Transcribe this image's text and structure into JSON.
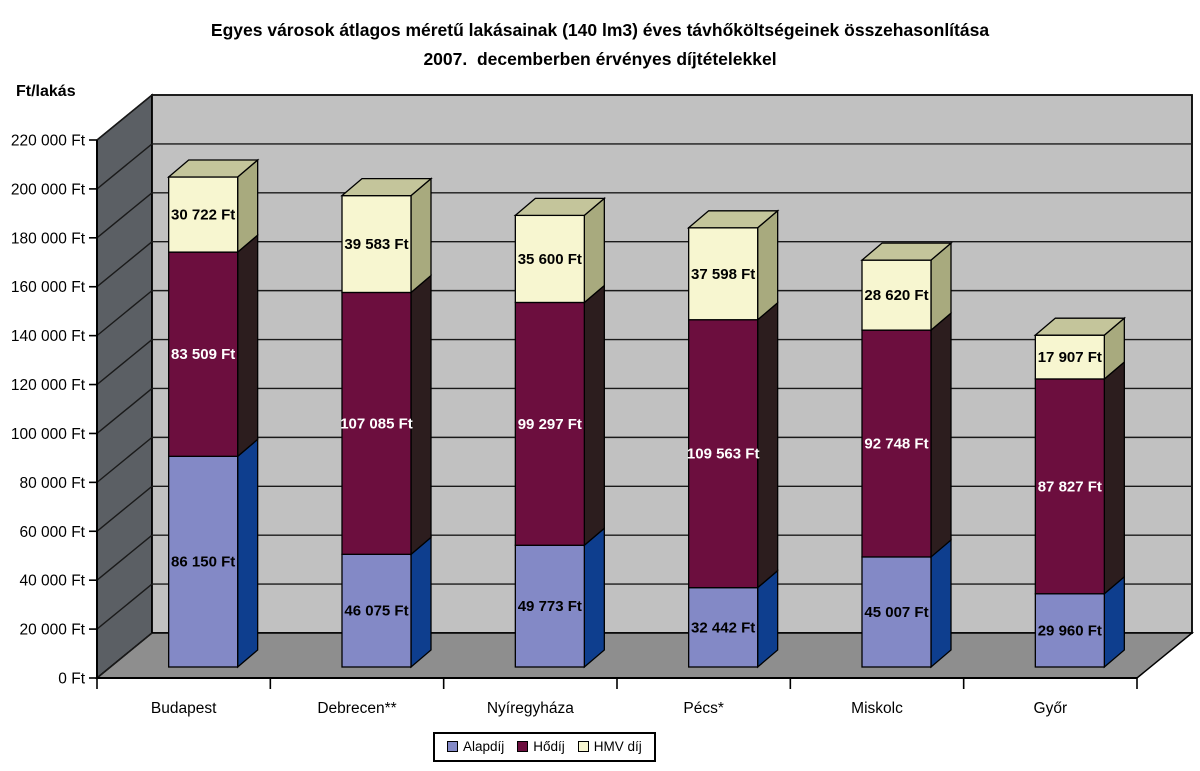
{
  "chart_data": {
    "type": "bar",
    "stacked": true,
    "three_d": true,
    "title": "Egyes városok átlagos méretű lakásainak (140 lm3) éves távhőköltségeinek összehasonlítása",
    "subtitle": "2007.  decemberben érvényes díjtételekkel",
    "ylabel": "Ft/lakás",
    "ylim": [
      0,
      220000
    ],
    "ytick_step": 20000,
    "yticks": [
      "0 Ft",
      "20 000 Ft",
      "40 000 Ft",
      "60 000 Ft",
      "80 000 Ft",
      "100 000 Ft",
      "120 000 Ft",
      "140 000 Ft",
      "160 000 Ft",
      "180 000 Ft",
      "200 000 Ft",
      "220 000 Ft"
    ],
    "categories": [
      "Budapest",
      "Debrecen**",
      "Nyíregyháza",
      "Pécs*",
      "Miskolc",
      "Győr"
    ],
    "grid": true,
    "legend_position": "bottom",
    "series": [
      {
        "name": "Alapdíj",
        "values": [
          86150,
          46075,
          49773,
          32442,
          45007,
          29960
        ],
        "labels": [
          "86 150 Ft",
          "46 075 Ft",
          "49 773 Ft",
          "32 442 Ft",
          "45 007 Ft",
          "29 960 Ft"
        ],
        "color_front": "#8389c6",
        "color_side": "#0e3e8e",
        "label_color": "#000000"
      },
      {
        "name": "Hődíj",
        "values": [
          83509,
          107085,
          99297,
          109563,
          92748,
          87827
        ],
        "labels": [
          "83 509 Ft",
          "107 085 Ft",
          "99 297 Ft",
          "109 563 Ft",
          "92 748 Ft",
          "87 827 Ft"
        ],
        "color_front": "#6c0e3e",
        "color_side": "#2c1d1e",
        "label_color": "#ffffff"
      },
      {
        "name": "HMV díj",
        "values": [
          30722,
          39583,
          35600,
          37598,
          28620,
          17907
        ],
        "labels": [
          "30 722 Ft",
          "39 583 Ft",
          "35 600 Ft",
          "37 598 Ft",
          "28 620 Ft",
          "17 907 Ft"
        ],
        "color_front": "#f7f6d0",
        "color_side": "#a8aa7e",
        "color_top": "#c4c59b",
        "label_color": "#000000"
      }
    ],
    "colors": {
      "back_wall": "#c1c1c1",
      "side_wall": "#5b5f64",
      "floor": "#8e8e8e",
      "outline": "#000000",
      "gridline": "#1a1a1a",
      "text": "#000000"
    }
  }
}
